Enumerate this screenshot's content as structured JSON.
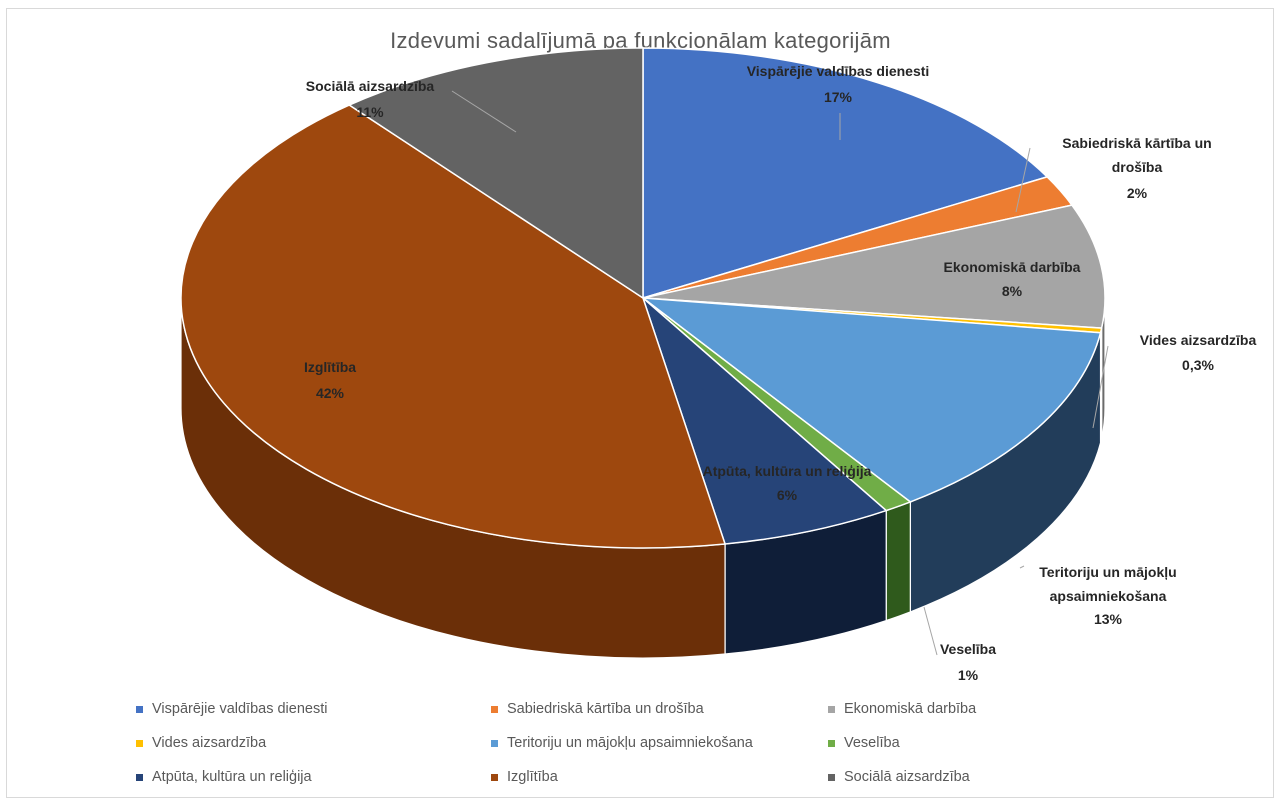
{
  "chart_data": {
    "type": "pie",
    "title": "Izdevumi sadalījumā pa funkcionālam kategorijām",
    "slices": [
      {
        "name": "Vispārējie valdības dienesti",
        "value": 17,
        "label": "17%",
        "color": "#4472C4",
        "side": "#2A4A86"
      },
      {
        "name": "Sabiedriskā kārtība un drošība",
        "value": 2,
        "label": "2%",
        "color": "#ED7D31",
        "side": "#9E4F1A"
      },
      {
        "name": "Ekonomiskā darbība",
        "value": 8,
        "label": "8%",
        "color": "#A5A5A5",
        "side": "#6B6B6B"
      },
      {
        "name": "Vides aizsardzība",
        "value": 0.3,
        "label": "0,3%",
        "color": "#FFC000",
        "side": "#A67C00"
      },
      {
        "name": "Teritoriju un mājokļu apsaimniekošana",
        "value": 13,
        "label": "13%",
        "color": "#5B9BD5",
        "side": "#223D5A"
      },
      {
        "name": "Veselība",
        "value": 1,
        "label": "1%",
        "color": "#70AD47",
        "side": "#2F5A1C"
      },
      {
        "name": "Atpūta, kultūra un reliģija",
        "value": 6,
        "label": "6%",
        "color": "#264478",
        "side": "#0F1E38"
      },
      {
        "name": "Izglītība",
        "value": 42,
        "label": "42%",
        "color": "#9E480E",
        "side": "#6B2F08"
      },
      {
        "name": "Sociālā aizsardzība",
        "value": 11,
        "label": "11%",
        "color": "#636363",
        "side": "#3E3E3E"
      }
    ],
    "legend_position": "bottom",
    "data_labels": true
  }
}
